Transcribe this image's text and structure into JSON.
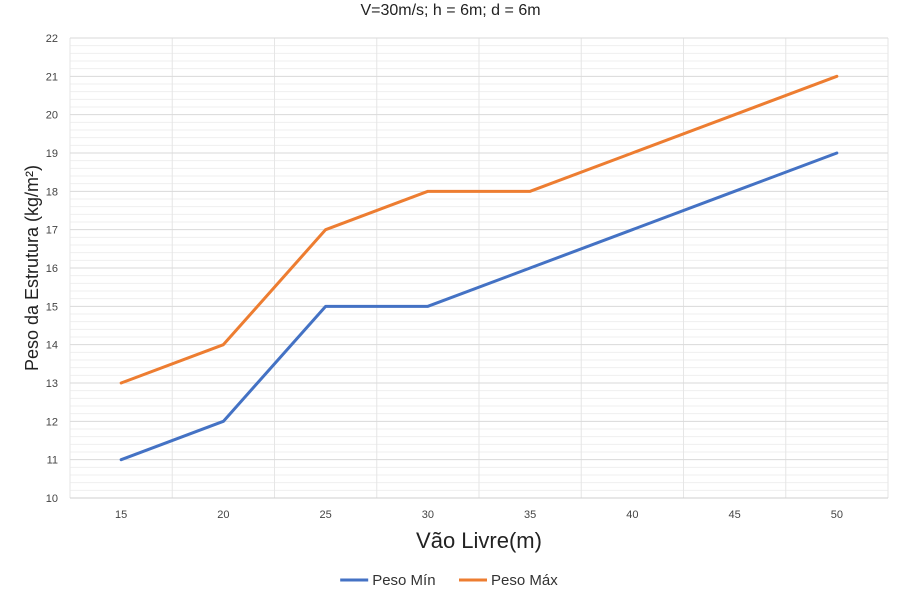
{
  "chart_data": {
    "type": "line",
    "title": "V=30m/s; h = 6m; d = 6m",
    "xlabel": "Vão Livre(m)",
    "ylabel": "Peso da Estrutura (kg/m²)",
    "categories": [
      "15",
      "20",
      "25",
      "30",
      "35",
      "40",
      "45",
      "50"
    ],
    "series": [
      {
        "name": "Peso Mín",
        "color": "#4472C4",
        "values": [
          11,
          12,
          15,
          15,
          16,
          17,
          18,
          19
        ]
      },
      {
        "name": "Peso Máx",
        "color": "#ED7D31",
        "values": [
          13,
          14,
          17,
          18,
          18,
          19,
          20,
          21
        ]
      }
    ],
    "ylim": [
      10,
      22
    ],
    "yticks": [
      "10",
      "11",
      "12",
      "13",
      "14",
      "15",
      "16",
      "17",
      "18",
      "19",
      "20",
      "21",
      "22"
    ],
    "grid": true,
    "legend_position": "bottom"
  }
}
